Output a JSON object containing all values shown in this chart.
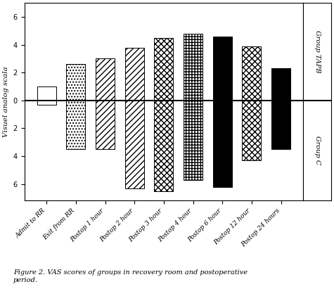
{
  "categories": [
    "Admit to RR",
    "Exit from RR",
    "Postop 1 hour",
    "Postop 2 hour",
    "Postop 3 hour",
    "Postop 4 hour",
    "Postop 6 hour",
    "Postop 12 hour",
    "Postop 24 hours"
  ],
  "tapb_values": [
    1.0,
    2.6,
    3.0,
    3.8,
    4.5,
    4.8,
    4.6,
    3.9,
    2.3
  ],
  "groupc_values": [
    0.3,
    3.5,
    3.5,
    6.3,
    6.5,
    5.7,
    6.2,
    4.3,
    3.5
  ],
  "hatch_tapb": [
    "",
    "....",
    "////",
    "////",
    "xxxx",
    "++++",
    "xxxx",
    "xxxx",
    ""
  ],
  "face_tapb": [
    "white",
    "white",
    "white",
    "white",
    "white",
    "white",
    "black",
    "white",
    "black"
  ],
  "hatch_groupc": [
    "",
    "....",
    "////",
    "////",
    "xxxx",
    "++++",
    "xxxx",
    "xxxx",
    ""
  ],
  "face_groupc": [
    "white",
    "white",
    "white",
    "white",
    "white",
    "white",
    "black",
    "white",
    "black"
  ],
  "ylim": [
    -7.2,
    7.0
  ],
  "yticks": [
    -6,
    -4,
    -2,
    0,
    2,
    4,
    6
  ],
  "ylabel": "Visuel analog scala",
  "group_tapb_label": "Group TAPB",
  "group_c_label": "Group C",
  "caption": "Figure 2. VAS scores of groups in recovery room and postoperative\nperiod.",
  "bar_width": 0.65,
  "edgecolor": "black"
}
